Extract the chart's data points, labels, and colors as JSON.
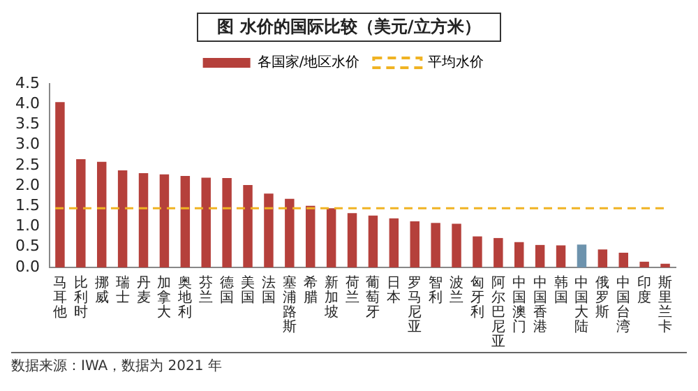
{
  "chart_data": {
    "type": "bar",
    "title": "图  水价的国际比较（美元/立方米）",
    "categories": [
      "马耳他",
      "比利时",
      "挪威",
      "瑞士",
      "丹麦",
      "加拿大",
      "奥地利",
      "芬兰",
      "德国",
      "美国",
      "法国",
      "塞浦路斯",
      "希腊",
      "新加坡",
      "荷兰",
      "葡萄牙",
      "日本",
      "罗马尼亚",
      "智利",
      "波兰",
      "匈牙利",
      "阿尔巴尼亚",
      "中国澳门",
      "中国香港",
      "韩国",
      "中国大陆",
      "俄罗斯",
      "中国台湾",
      "印度",
      "斯里兰卡"
    ],
    "series": [
      {
        "name": "各国家/地区水价",
        "color": "#b5403b",
        "colors": [
          "#b5403b",
          "#b5403b",
          "#b5403b",
          "#b5403b",
          "#b5403b",
          "#b5403b",
          "#b5403b",
          "#b5403b",
          "#b5403b",
          "#b5403b",
          "#b5403b",
          "#b5403b",
          "#b5403b",
          "#b5403b",
          "#b5403b",
          "#b5403b",
          "#b5403b",
          "#b5403b",
          "#b5403b",
          "#b5403b",
          "#b5403b",
          "#b5403b",
          "#b5403b",
          "#b5403b",
          "#b5403b",
          "#6d93ad",
          "#b5403b",
          "#b5403b",
          "#b5403b",
          "#b5403b"
        ],
        "values": [
          4.05,
          2.65,
          2.59,
          2.38,
          2.31,
          2.28,
          2.24,
          2.2,
          2.19,
          2.02,
          1.81,
          1.68,
          1.51,
          1.45,
          1.33,
          1.27,
          1.2,
          1.13,
          1.09,
          1.07,
          0.76,
          0.72,
          0.62,
          0.55,
          0.54,
          0.56,
          0.44,
          0.36,
          0.14,
          0.09
        ]
      }
    ],
    "ylim": [
      0,
      4.5
    ],
    "yticks": [
      {
        "value": 0,
        "label": "0.0"
      },
      {
        "value": 0.5,
        "label": "0.5"
      },
      {
        "value": 1,
        "label": "1.0"
      },
      {
        "value": 1.5,
        "label": "1.5"
      },
      {
        "value": 2,
        "label": "2.0"
      },
      {
        "value": 2.5,
        "label": "2.5"
      },
      {
        "value": 3,
        "label": "3.0"
      },
      {
        "value": 3.5,
        "label": "3.5"
      },
      {
        "value": 4,
        "label": "4.0"
      },
      {
        "value": 4.5,
        "label": "4.5"
      }
    ],
    "ref_lines": [
      {
        "axis": "y",
        "value": 1.45,
        "label": "平均水价",
        "color": "#f0b323",
        "line_style": "dashed"
      }
    ],
    "legend": "top",
    "grid": false,
    "annotations": [
      "数据来源：IWA，数据为 2021 年"
    ]
  }
}
